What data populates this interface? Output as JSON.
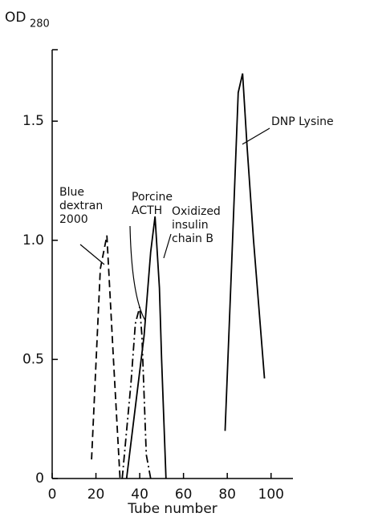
{
  "chart_data": {
    "type": "line",
    "ylabel": "OD",
    "ylabel_subscript": "280",
    "xlabel": "Tube number",
    "xlim": [
      0,
      110
    ],
    "xticks": [
      0,
      20,
      40,
      60,
      80,
      100
    ],
    "ylim": [
      0,
      1.8
    ],
    "yticks": [
      0,
      {
        "value": 0.5,
        "label": "0.5"
      },
      {
        "value": 1.0,
        "label": "1.0"
      },
      {
        "value": 1.5,
        "label": "1.5"
      }
    ],
    "grid": false,
    "series": [
      {
        "name": "Blue dextran 2000",
        "color": "#000000",
        "style": "dashed",
        "x": [
          18,
          22,
          25,
          28,
          31
        ],
        "values": [
          0.08,
          0.88,
          1.02,
          0.5,
          0
        ]
      },
      {
        "name": "Porcine ACTH",
        "color": "#000000",
        "style": "dashdot",
        "x": [
          32,
          36,
          38,
          40,
          41,
          43,
          45
        ],
        "values": [
          0,
          0.4,
          0.65,
          0.72,
          0.6,
          0.1,
          0
        ]
      },
      {
        "name": "Oxidized insulin chain B",
        "color": "#000000",
        "style": "solid",
        "x": [
          34,
          38,
          42,
          45,
          47,
          49,
          50,
          52
        ],
        "values": [
          0,
          0.3,
          0.6,
          0.95,
          1.1,
          0.8,
          0.5,
          0
        ]
      },
      {
        "name": "DNP Lysine",
        "color": "#000000",
        "style": "solid",
        "x": [
          79,
          82,
          85,
          87,
          89,
          92,
          97
        ],
        "values": [
          0.2,
          0.9,
          1.62,
          1.7,
          1.4,
          1.0,
          0.42
        ]
      }
    ]
  }
}
